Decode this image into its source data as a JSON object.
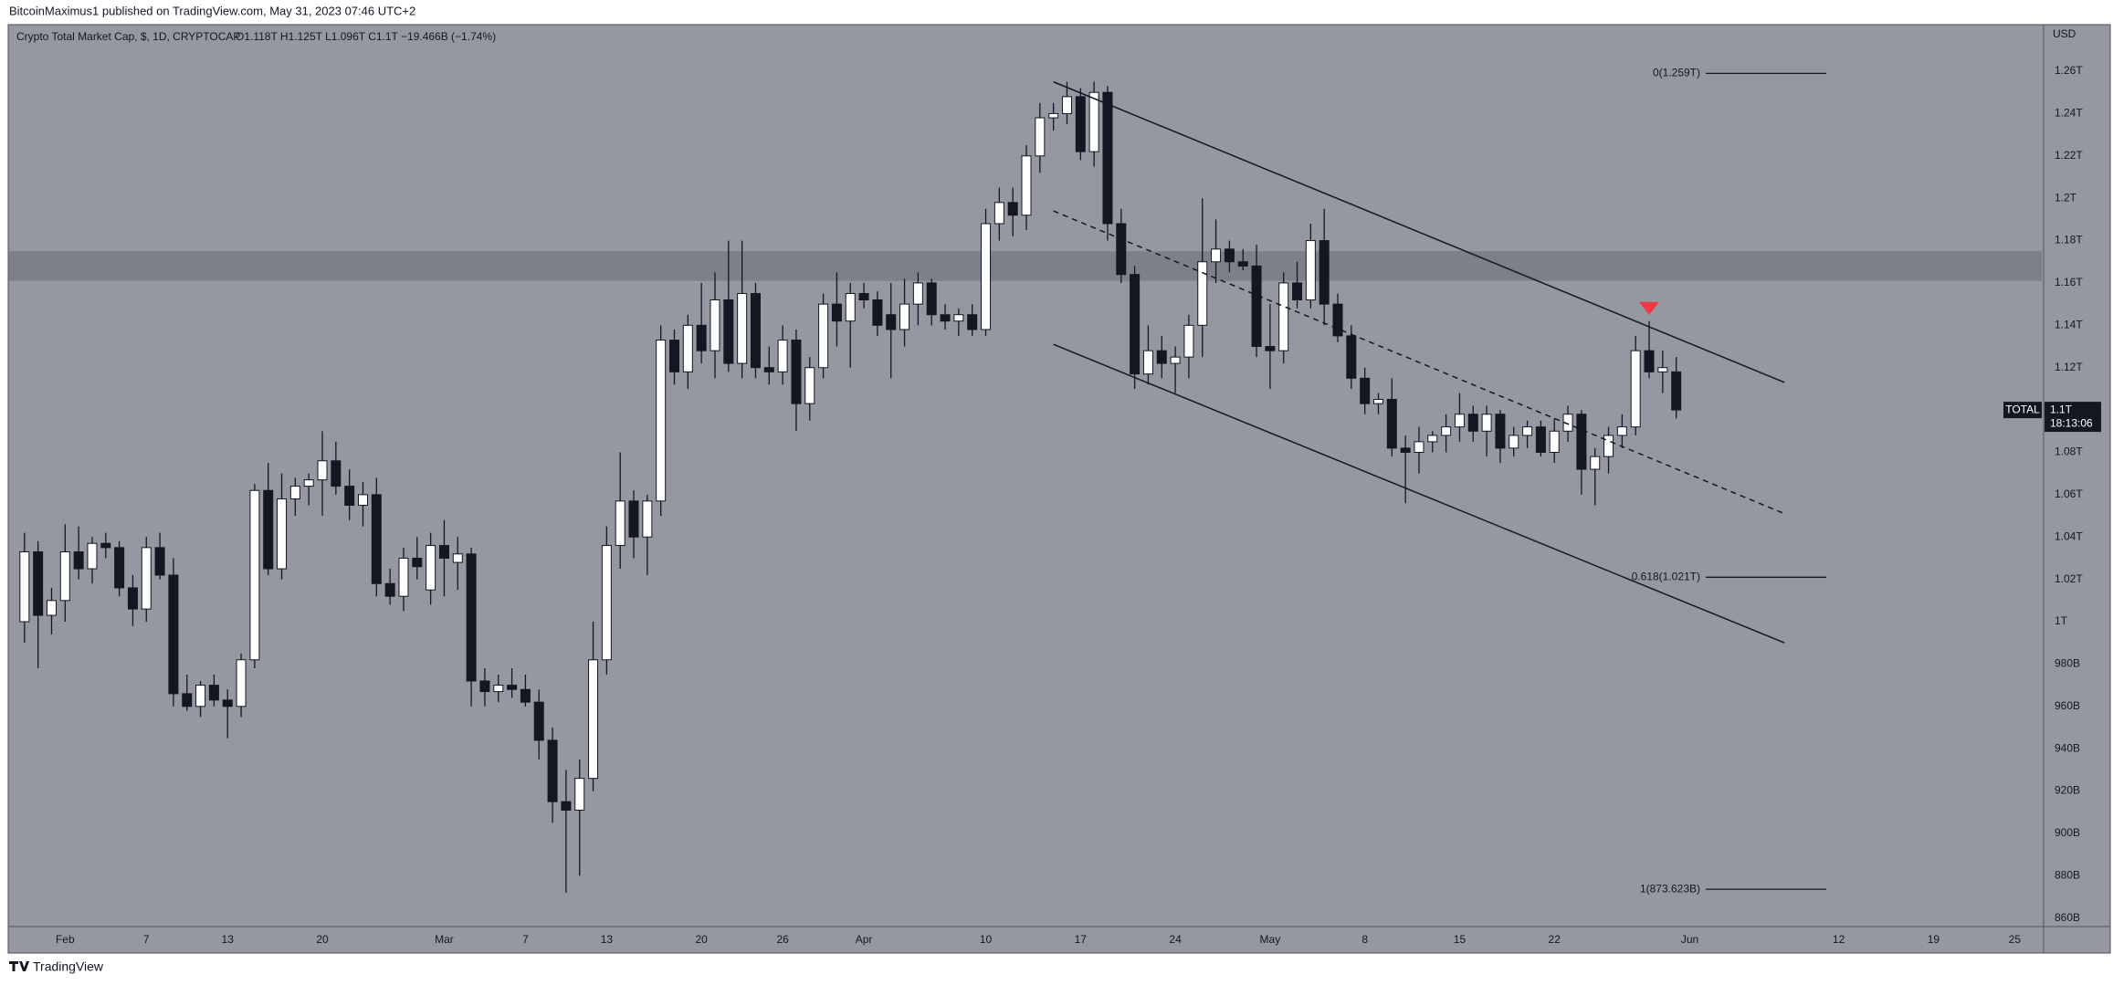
{
  "header": "BitcoinMaximus1 published on TradingView.com, May 31, 2023 07:46 UTC+2",
  "footer": "TradingView",
  "chart_data": {
    "type": "candlestick",
    "title": "Crypto Total Market Cap, $, 1D, CRYPTOCAP",
    "subtitle": "O1.118T H1.125T L1.096T C1.1T −19.466B (−1.74%)",
    "axis_label": "USD",
    "up_color": "#ffffff",
    "down_color": "#131722",
    "x": [
      "2023-01-29",
      "2023-01-30",
      "2023-01-31",
      "2023-02-01",
      "2023-02-02",
      "2023-02-03",
      "2023-02-04",
      "2023-02-05",
      "2023-02-06",
      "2023-02-07",
      "2023-02-08",
      "2023-02-09",
      "2023-02-10",
      "2023-02-11",
      "2023-02-12",
      "2023-02-13",
      "2023-02-14",
      "2023-02-15",
      "2023-02-16",
      "2023-02-17",
      "2023-02-18",
      "2023-02-19",
      "2023-02-20",
      "2023-02-21",
      "2023-02-22",
      "2023-02-23",
      "2023-02-24",
      "2023-02-25",
      "2023-02-26",
      "2023-02-27",
      "2023-02-28",
      "2023-03-01",
      "2023-03-02",
      "2023-03-03",
      "2023-03-04",
      "2023-03-05",
      "2023-03-06",
      "2023-03-07",
      "2023-03-08",
      "2023-03-09",
      "2023-03-10",
      "2023-03-11",
      "2023-03-12",
      "2023-03-13",
      "2023-03-14",
      "2023-03-15",
      "2023-03-16",
      "2023-03-17",
      "2023-03-18",
      "2023-03-19",
      "2023-03-20",
      "2023-03-21",
      "2023-03-22",
      "2023-03-23",
      "2023-03-24",
      "2023-03-25",
      "2023-03-26",
      "2023-03-27",
      "2023-03-28",
      "2023-03-29",
      "2023-03-30",
      "2023-03-31",
      "2023-04-01",
      "2023-04-02",
      "2023-04-03",
      "2023-04-04",
      "2023-04-05",
      "2023-04-06",
      "2023-04-07",
      "2023-04-08",
      "2023-04-09",
      "2023-04-10",
      "2023-04-11",
      "2023-04-12",
      "2023-04-13",
      "2023-04-14",
      "2023-04-15",
      "2023-04-16",
      "2023-04-17",
      "2023-04-18",
      "2023-04-19",
      "2023-04-20",
      "2023-04-21",
      "2023-04-22",
      "2023-04-23",
      "2023-04-24",
      "2023-04-25",
      "2023-04-26",
      "2023-04-27",
      "2023-04-28",
      "2023-04-29",
      "2023-04-30",
      "2023-05-01",
      "2023-05-02",
      "2023-05-03",
      "2023-05-04",
      "2023-05-05",
      "2023-05-06",
      "2023-05-07",
      "2023-05-08",
      "2023-05-09",
      "2023-05-10",
      "2023-05-11",
      "2023-05-12",
      "2023-05-13",
      "2023-05-14",
      "2023-05-15",
      "2023-05-16",
      "2023-05-17",
      "2023-05-18",
      "2023-05-19",
      "2023-05-20",
      "2023-05-21",
      "2023-05-22",
      "2023-05-23",
      "2023-05-24",
      "2023-05-25",
      "2023-05-26",
      "2023-05-27",
      "2023-05-28",
      "2023-05-29",
      "2023-05-30",
      "2023-05-31"
    ],
    "ohlc": [
      [
        1000,
        1042,
        990,
        1033
      ],
      [
        1033,
        1038,
        978,
        1003
      ],
      [
        1003,
        1016,
        994,
        1010
      ],
      [
        1010,
        1046,
        1000,
        1033
      ],
      [
        1033,
        1045,
        1020,
        1025
      ],
      [
        1025,
        1040,
        1018,
        1037
      ],
      [
        1037,
        1042,
        1030,
        1035
      ],
      [
        1035,
        1038,
        1012,
        1016
      ],
      [
        1016,
        1022,
        998,
        1006
      ],
      [
        1006,
        1040,
        1000,
        1035
      ],
      [
        1035,
        1042,
        1020,
        1022
      ],
      [
        1022,
        1030,
        960,
        966
      ],
      [
        966,
        975,
        958,
        960
      ],
      [
        960,
        972,
        955,
        970
      ],
      [
        970,
        975,
        960,
        963
      ],
      [
        963,
        968,
        945,
        960
      ],
      [
        960,
        985,
        955,
        982
      ],
      [
        982,
        1065,
        978,
        1062
      ],
      [
        1062,
        1075,
        1022,
        1025
      ],
      [
        1025,
        1070,
        1020,
        1058
      ],
      [
        1058,
        1068,
        1050,
        1064
      ],
      [
        1064,
        1070,
        1055,
        1067
      ],
      [
        1067,
        1090,
        1050,
        1076
      ],
      [
        1076,
        1085,
        1060,
        1064
      ],
      [
        1064,
        1072,
        1048,
        1055
      ],
      [
        1055,
        1066,
        1045,
        1060
      ],
      [
        1060,
        1068,
        1012,
        1018
      ],
      [
        1018,
        1025,
        1008,
        1012
      ],
      [
        1012,
        1035,
        1005,
        1030
      ],
      [
        1030,
        1040,
        1020,
        1026
      ],
      [
        1015,
        1042,
        1008,
        1036
      ],
      [
        1036,
        1048,
        1012,
        1030
      ],
      [
        1028,
        1040,
        1015,
        1032
      ],
      [
        1032,
        1035,
        960,
        972
      ],
      [
        972,
        978,
        960,
        967
      ],
      [
        967,
        975,
        962,
        970
      ],
      [
        970,
        978,
        964,
        968
      ],
      [
        968,
        975,
        960,
        962
      ],
      [
        962,
        968,
        935,
        944
      ],
      [
        944,
        950,
        905,
        915
      ],
      [
        915,
        930,
        872,
        911
      ],
      [
        911,
        935,
        880,
        926
      ],
      [
        926,
        1000,
        920,
        982
      ],
      [
        982,
        1045,
        975,
        1036
      ],
      [
        1036,
        1080,
        1025,
        1057
      ],
      [
        1057,
        1062,
        1030,
        1040
      ],
      [
        1040,
        1060,
        1022,
        1057
      ],
      [
        1057,
        1140,
        1050,
        1133
      ],
      [
        1133,
        1138,
        1112,
        1118
      ],
      [
        1118,
        1145,
        1110,
        1140
      ],
      [
        1140,
        1160,
        1122,
        1128
      ],
      [
        1128,
        1165,
        1115,
        1152
      ],
      [
        1152,
        1180,
        1118,
        1122
      ],
      [
        1122,
        1180,
        1115,
        1155
      ],
      [
        1155,
        1160,
        1115,
        1120
      ],
      [
        1120,
        1130,
        1112,
        1118
      ],
      [
        1118,
        1140,
        1112,
        1133
      ],
      [
        1133,
        1138,
        1090,
        1103
      ],
      [
        1103,
        1125,
        1095,
        1120
      ],
      [
        1120,
        1155,
        1115,
        1150
      ],
      [
        1150,
        1165,
        1130,
        1142
      ],
      [
        1142,
        1160,
        1120,
        1155
      ],
      [
        1155,
        1160,
        1148,
        1152
      ],
      [
        1152,
        1156,
        1135,
        1140
      ],
      [
        1145,
        1160,
        1115,
        1138
      ],
      [
        1138,
        1162,
        1130,
        1150
      ],
      [
        1150,
        1165,
        1140,
        1160
      ],
      [
        1160,
        1162,
        1140,
        1145
      ],
      [
        1145,
        1150,
        1138,
        1142
      ],
      [
        1142,
        1148,
        1135,
        1145
      ],
      [
        1145,
        1150,
        1135,
        1138
      ],
      [
        1138,
        1195,
        1135,
        1188
      ],
      [
        1188,
        1205,
        1180,
        1198
      ],
      [
        1198,
        1205,
        1182,
        1192
      ],
      [
        1192,
        1225,
        1185,
        1220
      ],
      [
        1220,
        1245,
        1212,
        1238
      ],
      [
        1238,
        1245,
        1232,
        1240
      ],
      [
        1240,
        1255,
        1235,
        1248
      ],
      [
        1248,
        1252,
        1218,
        1222
      ],
      [
        1222,
        1255,
        1215,
        1250
      ],
      [
        1250,
        1253,
        1180,
        1188
      ],
      [
        1188,
        1195,
        1160,
        1164
      ],
      [
        1164,
        1168,
        1110,
        1117
      ],
      [
        1117,
        1140,
        1112,
        1128
      ],
      [
        1128,
        1135,
        1115,
        1122
      ],
      [
        1122,
        1130,
        1108,
        1125
      ],
      [
        1125,
        1145,
        1115,
        1140
      ],
      [
        1140,
        1200,
        1125,
        1170
      ],
      [
        1170,
        1190,
        1160,
        1176
      ],
      [
        1176,
        1180,
        1165,
        1170
      ],
      [
        1170,
        1176,
        1166,
        1168
      ],
      [
        1168,
        1178,
        1125,
        1130
      ],
      [
        1130,
        1150,
        1110,
        1128
      ],
      [
        1128,
        1165,
        1122,
        1160
      ],
      [
        1160,
        1170,
        1148,
        1152
      ],
      [
        1152,
        1188,
        1148,
        1180
      ],
      [
        1180,
        1195,
        1140,
        1150
      ],
      [
        1150,
        1155,
        1132,
        1135
      ],
      [
        1135,
        1140,
        1110,
        1115
      ],
      [
        1115,
        1120,
        1098,
        1103
      ],
      [
        1103,
        1108,
        1098,
        1105
      ],
      [
        1105,
        1115,
        1078,
        1082
      ],
      [
        1082,
        1088,
        1056,
        1080
      ],
      [
        1080,
        1092,
        1070,
        1085
      ],
      [
        1085,
        1090,
        1080,
        1088
      ],
      [
        1088,
        1098,
        1080,
        1092
      ],
      [
        1092,
        1108,
        1085,
        1098
      ],
      [
        1098,
        1102,
        1085,
        1090
      ],
      [
        1090,
        1102,
        1078,
        1098
      ],
      [
        1098,
        1100,
        1075,
        1082
      ],
      [
        1082,
        1092,
        1078,
        1088
      ],
      [
        1088,
        1095,
        1082,
        1092
      ],
      [
        1092,
        1095,
        1078,
        1080
      ],
      [
        1080,
        1096,
        1075,
        1090
      ],
      [
        1090,
        1102,
        1085,
        1098
      ],
      [
        1098,
        1100,
        1060,
        1072
      ],
      [
        1072,
        1082,
        1055,
        1078
      ],
      [
        1078,
        1092,
        1070,
        1088
      ],
      [
        1088,
        1098,
        1082,
        1092
      ],
      [
        1092,
        1135,
        1088,
        1128
      ],
      [
        1128,
        1142,
        1115,
        1118
      ],
      [
        1118,
        1128,
        1108,
        1120
      ],
      [
        1118,
        1125,
        1096,
        1100
      ]
    ],
    "xlim": [
      "2023-01-28",
      "2023-06-27"
    ],
    "xticks": [
      {
        "value": "2023-02-01",
        "label": "Feb"
      },
      {
        "value": "2023-02-07",
        "label": "7"
      },
      {
        "value": "2023-02-13",
        "label": "13"
      },
      {
        "value": "2023-02-20",
        "label": "20"
      },
      {
        "value": "2023-03-01",
        "label": "Mar"
      },
      {
        "value": "2023-03-07",
        "label": "7"
      },
      {
        "value": "2023-03-13",
        "label": "13"
      },
      {
        "value": "2023-03-20",
        "label": "20"
      },
      {
        "value": "2023-03-26",
        "label": "26"
      },
      {
        "value": "2023-04-01",
        "label": "Apr"
      },
      {
        "value": "2023-04-10",
        "label": "10"
      },
      {
        "value": "2023-04-17",
        "label": "17"
      },
      {
        "value": "2023-04-24",
        "label": "24"
      },
      {
        "value": "2023-05-01",
        "label": "May"
      },
      {
        "value": "2023-05-08",
        "label": "8"
      },
      {
        "value": "2023-05-15",
        "label": "15"
      },
      {
        "value": "2023-05-22",
        "label": "22"
      },
      {
        "value": "2023-06-01",
        "label": "Jun"
      },
      {
        "value": "2023-06-12",
        "label": "12"
      },
      {
        "value": "2023-06-19",
        "label": "19"
      },
      {
        "value": "2023-06-25",
        "label": "25"
      }
    ],
    "ylim": [
      856,
      1282
    ],
    "yticks": [
      {
        "value": 1260,
        "label": "1.26T"
      },
      {
        "value": 1240,
        "label": "1.24T"
      },
      {
        "value": 1220,
        "label": "1.22T"
      },
      {
        "value": 1200,
        "label": "1.2T"
      },
      {
        "value": 1180,
        "label": "1.18T"
      },
      {
        "value": 1160,
        "label": "1.16T"
      },
      {
        "value": 1140,
        "label": "1.14T"
      },
      {
        "value": 1120,
        "label": "1.12T"
      },
      {
        "value": 1080,
        "label": "1.08T"
      },
      {
        "value": 1060,
        "label": "1.06T"
      },
      {
        "value": 1040,
        "label": "1.04T"
      },
      {
        "value": 1020,
        "label": "1.02T"
      },
      {
        "value": 1000,
        "label": "1T"
      },
      {
        "value": 980,
        "label": "980B"
      },
      {
        "value": 960,
        "label": "960B"
      },
      {
        "value": 940,
        "label": "940B"
      },
      {
        "value": 920,
        "label": "920B"
      },
      {
        "value": 900,
        "label": "900B"
      },
      {
        "value": 880,
        "label": "880B"
      },
      {
        "value": 860,
        "label": "860B"
      }
    ],
    "resistance_zone": [
      1161,
      1175
    ],
    "channel": [
      {
        "start": [
          "2023-04-15",
          1255
        ],
        "end": [
          "2023-06-08",
          1113
        ],
        "dashed": false
      },
      {
        "start": [
          "2023-04-15",
          1194
        ],
        "end": [
          "2023-06-08",
          1051
        ],
        "dashed": true
      },
      {
        "start": [
          "2023-04-15",
          1131
        ],
        "end": [
          "2023-06-08",
          990
        ],
        "dashed": false
      }
    ],
    "fib_levels": [
      {
        "value": 1259,
        "label": "0(1.259T)"
      },
      {
        "value": 1021,
        "label": "0.618(1.021T)"
      },
      {
        "value": 873.623,
        "label": "1(873.623B)"
      }
    ],
    "markers": [
      {
        "x": "2023-05-29",
        "value": 1148,
        "color": "#f23645"
      }
    ],
    "price_tag": {
      "name": "TOTAL",
      "value": 1100,
      "label": "1.1T",
      "countdown": "18:13:06"
    }
  }
}
